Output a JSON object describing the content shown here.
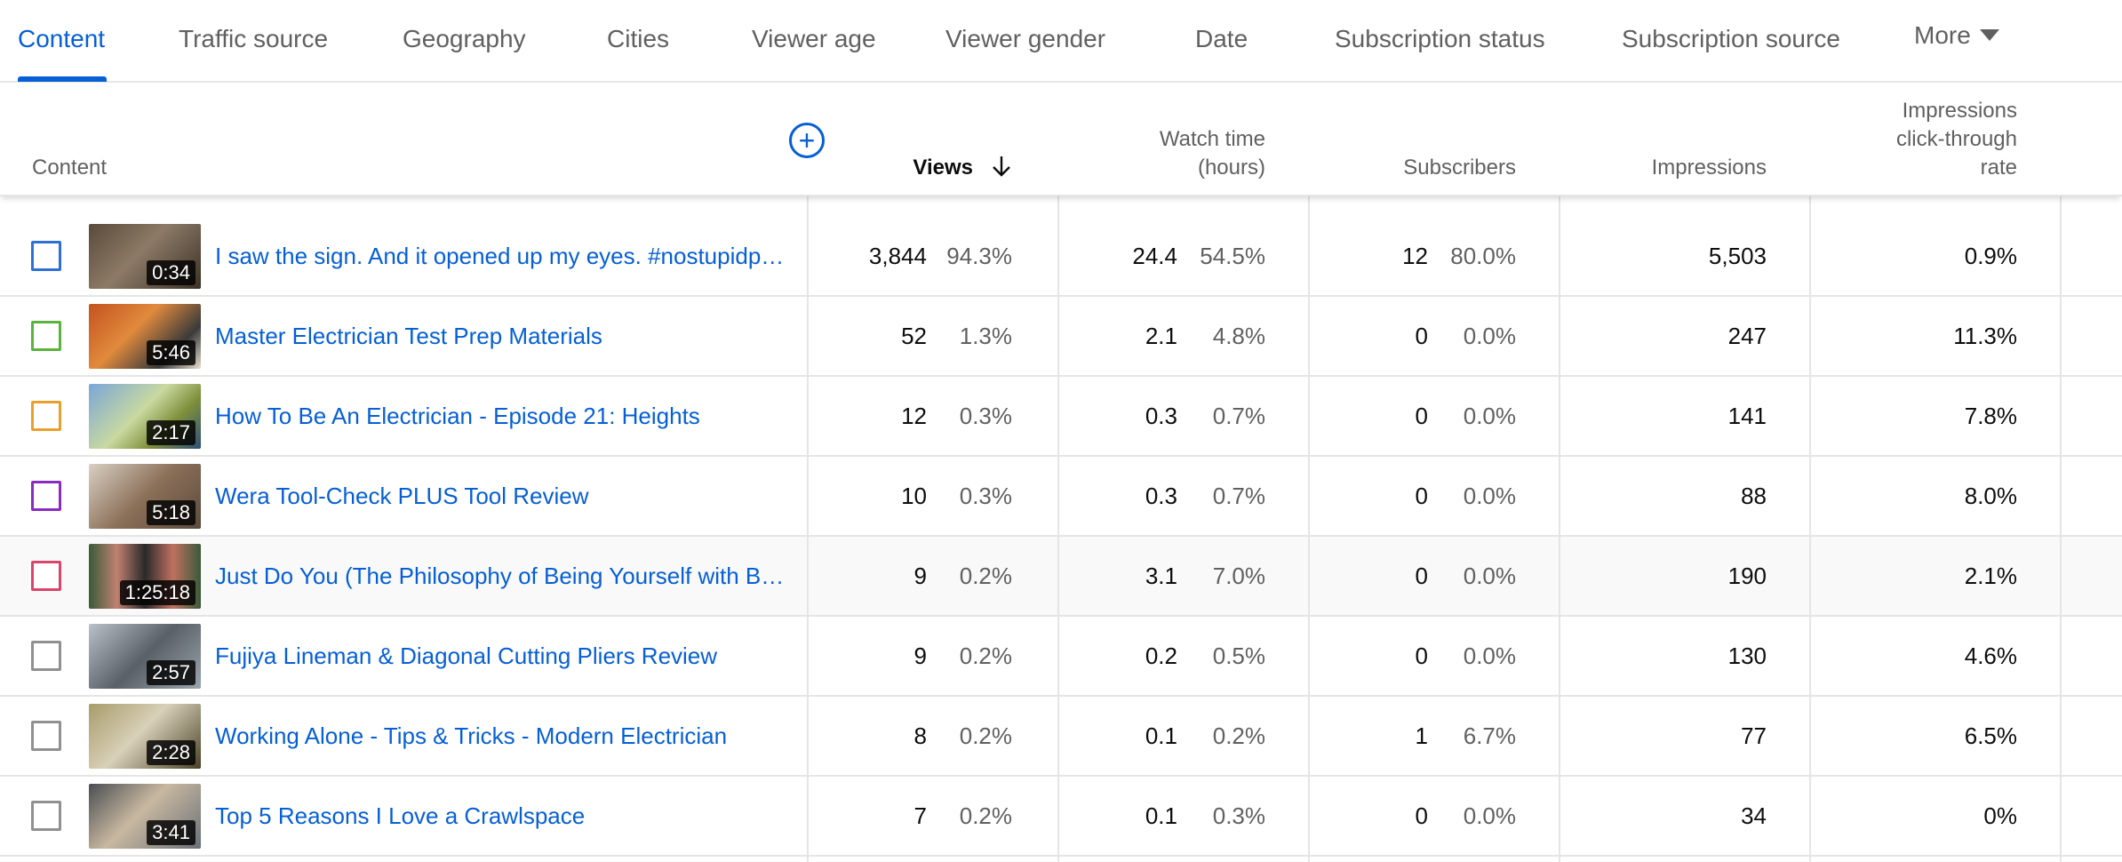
{
  "tabs": [
    {
      "label": "Content",
      "active": true
    },
    {
      "label": "Traffic source",
      "active": false
    },
    {
      "label": "Geography",
      "active": false
    },
    {
      "label": "Cities",
      "active": false
    },
    {
      "label": "Viewer age",
      "active": false
    },
    {
      "label": "Viewer gender",
      "active": false
    },
    {
      "label": "Date",
      "active": false
    },
    {
      "label": "Subscription status",
      "active": false
    },
    {
      "label": "Subscription source",
      "active": false
    },
    {
      "label": "More",
      "active": false
    }
  ],
  "columns": {
    "content": "Content",
    "views": "Views",
    "watch_time_1": "Watch time",
    "watch_time_2": "(hours)",
    "subscribers": "Subscribers",
    "impressions": "Impressions",
    "ctr_1": "Impressions",
    "ctr_2": "click-through",
    "ctr_3": "rate",
    "add_metric": "+"
  },
  "colors": {
    "accent": "#065fd4",
    "checkbox_colors": [
      "#2f6fd6",
      "#5bb33f",
      "#e8a02c",
      "#8a2cc2",
      "#d9456b",
      "#909090",
      "#909090",
      "#909090"
    ]
  },
  "rows": [
    {
      "title": "I saw the sign. And it opened up my eyes. #nostupidpe…",
      "duration": "0:34",
      "views": "3,844",
      "views_pct": "94.3%",
      "watch": "24.4",
      "watch_pct": "54.5%",
      "subs": "12",
      "subs_pct": "80.0%",
      "impressions": "5,503",
      "ctr": "0.9%"
    },
    {
      "title": "Master Electrician Test Prep Materials",
      "duration": "5:46",
      "views": "52",
      "views_pct": "1.3%",
      "watch": "2.1",
      "watch_pct": "4.8%",
      "subs": "0",
      "subs_pct": "0.0%",
      "impressions": "247",
      "ctr": "11.3%"
    },
    {
      "title": "How To Be An Electrician - Episode 21: Heights",
      "duration": "2:17",
      "views": "12",
      "views_pct": "0.3%",
      "watch": "0.3",
      "watch_pct": "0.7%",
      "subs": "0",
      "subs_pct": "0.0%",
      "impressions": "141",
      "ctr": "7.8%"
    },
    {
      "title": "Wera Tool-Check PLUS Tool Review",
      "duration": "5:18",
      "views": "10",
      "views_pct": "0.3%",
      "watch": "0.3",
      "watch_pct": "0.7%",
      "subs": "0",
      "subs_pct": "0.0%",
      "impressions": "88",
      "ctr": "8.0%"
    },
    {
      "title": "Just Do You (The Philosophy of Being Yourself with Br…",
      "duration": "1:25:18",
      "views": "9",
      "views_pct": "0.2%",
      "watch": "3.1",
      "watch_pct": "7.0%",
      "subs": "0",
      "subs_pct": "0.0%",
      "impressions": "190",
      "ctr": "2.1%"
    },
    {
      "title": "Fujiya Lineman & Diagonal Cutting Pliers Review",
      "duration": "2:57",
      "views": "9",
      "views_pct": "0.2%",
      "watch": "0.2",
      "watch_pct": "0.5%",
      "subs": "0",
      "subs_pct": "0.0%",
      "impressions": "130",
      "ctr": "4.6%"
    },
    {
      "title": "Working Alone - Tips & Tricks - Modern Electrician",
      "duration": "2:28",
      "views": "8",
      "views_pct": "0.2%",
      "watch": "0.1",
      "watch_pct": "0.2%",
      "subs": "1",
      "subs_pct": "6.7%",
      "impressions": "77",
      "ctr": "6.5%"
    },
    {
      "title": "Top 5 Reasons I Love a Crawlspace",
      "duration": "3:41",
      "views": "7",
      "views_pct": "0.2%",
      "watch": "0.1",
      "watch_pct": "0.3%",
      "subs": "0",
      "subs_pct": "0.0%",
      "impressions": "34",
      "ctr": "0%"
    }
  ]
}
